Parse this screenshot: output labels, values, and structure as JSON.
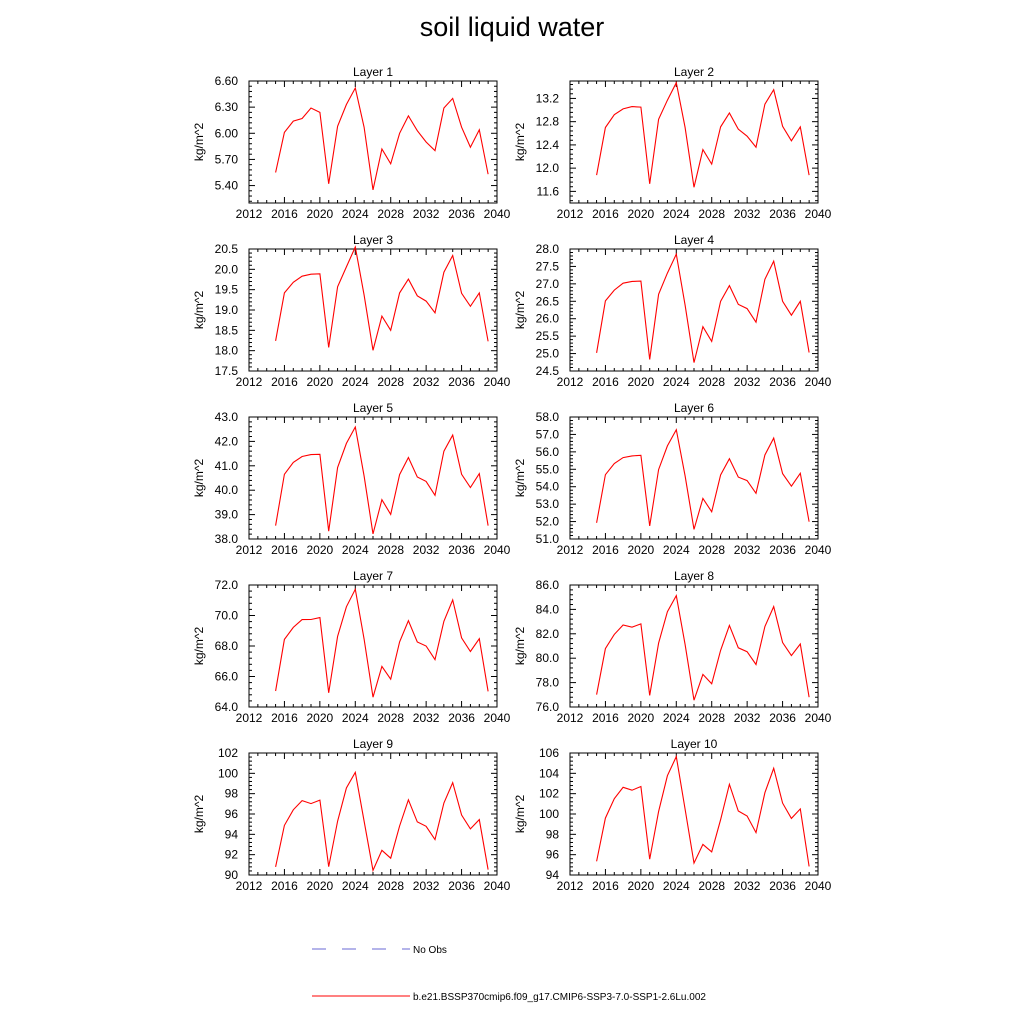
{
  "title": "soil liquid water",
  "legend": {
    "placement": "bottom",
    "entries": [
      {
        "label": "No Obs",
        "color": "#6a6ad6",
        "style": "dashed"
      },
      {
        "label": "b.e21.BSSP370cmip6.f09_g17.CMIP6-SSP3-7.0-SSP1-2.6Lu.002",
        "color": "#ff0000",
        "style": "solid"
      }
    ]
  },
  "chart_data": [
    {
      "type": "line",
      "title": "Layer 1",
      "ylabel": "kg/m^2",
      "xlim": [
        2012,
        2040
      ],
      "xticks": [
        "2012",
        "2016",
        "2020",
        "2024",
        "2028",
        "2032",
        "2036",
        "2040"
      ],
      "ylim": [
        5.2,
        6.6
      ],
      "yticks": [
        "5.40",
        "5.70",
        "6.00",
        "6.30",
        "6.60"
      ],
      "series": [
        {
          "color": "#ff0000",
          "x": [
            2015,
            2016,
            2017,
            2018,
            2019,
            2020,
            2021,
            2022,
            2023,
            2024,
            2025,
            2026,
            2027,
            2028,
            2029,
            2030,
            2031,
            2032,
            2033,
            2034,
            2035,
            2036,
            2037,
            2038,
            2039
          ],
          "y": [
            5.55,
            6.01,
            6.14,
            6.17,
            6.29,
            6.24,
            5.42,
            6.08,
            6.33,
            6.52,
            6.07,
            5.35,
            5.82,
            5.65,
            6.0,
            6.2,
            6.03,
            5.9,
            5.8,
            6.29,
            6.4,
            6.07,
            5.84,
            6.04,
            5.53
          ]
        }
      ]
    },
    {
      "type": "line",
      "title": "Layer 2",
      "ylabel": "kg/m^2",
      "xlim": [
        2012,
        2040
      ],
      "xticks": [
        "2012",
        "2016",
        "2020",
        "2024",
        "2028",
        "2032",
        "2036",
        "2040"
      ],
      "ylim": [
        11.4,
        13.5
      ],
      "yticks": [
        "11.6",
        "12.0",
        "12.4",
        "12.8",
        "13.2"
      ],
      "series": [
        {
          "color": "#ff0000",
          "x": [
            2015,
            2016,
            2017,
            2018,
            2019,
            2020,
            2021,
            2022,
            2023,
            2024,
            2025,
            2026,
            2027,
            2028,
            2029,
            2030,
            2031,
            2032,
            2033,
            2034,
            2035,
            2036,
            2037,
            2038,
            2039
          ],
          "y": [
            11.88,
            12.7,
            12.92,
            13.02,
            13.06,
            13.05,
            11.73,
            12.84,
            13.17,
            13.47,
            12.7,
            11.67,
            12.32,
            12.07,
            12.71,
            12.95,
            12.67,
            12.55,
            12.36,
            13.1,
            13.35,
            12.72,
            12.47,
            12.71,
            11.88
          ]
        }
      ]
    },
    {
      "type": "line",
      "title": "Layer 3",
      "ylabel": "kg/m^2",
      "xlim": [
        2012,
        2040
      ],
      "xticks": [
        "2012",
        "2016",
        "2020",
        "2024",
        "2028",
        "2032",
        "2036",
        "2040"
      ],
      "ylim": [
        17.5,
        20.5
      ],
      "yticks": [
        "17.5",
        "18.0",
        "18.5",
        "19.0",
        "19.5",
        "20.0",
        "20.5"
      ],
      "series": [
        {
          "color": "#ff0000",
          "x": [
            2015,
            2016,
            2017,
            2018,
            2019,
            2020,
            2021,
            2022,
            2023,
            2024,
            2025,
            2026,
            2027,
            2028,
            2029,
            2030,
            2031,
            2032,
            2033,
            2034,
            2035,
            2036,
            2037,
            2038,
            2039
          ],
          "y": [
            18.24,
            19.42,
            19.68,
            19.83,
            19.88,
            19.89,
            18.08,
            19.57,
            20.06,
            20.55,
            19.37,
            18.01,
            18.85,
            18.5,
            19.42,
            19.76,
            19.35,
            19.22,
            18.93,
            19.93,
            20.34,
            19.41,
            19.09,
            19.42,
            18.23
          ]
        }
      ]
    },
    {
      "type": "line",
      "title": "Layer 4",
      "ylabel": "kg/m^2",
      "xlim": [
        2012,
        2040
      ],
      "xticks": [
        "2012",
        "2016",
        "2020",
        "2024",
        "2028",
        "2032",
        "2036",
        "2040"
      ],
      "ylim": [
        24.5,
        28.0
      ],
      "yticks": [
        "24.5",
        "25.0",
        "25.5",
        "26.0",
        "26.5",
        "27.0",
        "27.5",
        "28.0"
      ],
      "series": [
        {
          "color": "#ff0000",
          "x": [
            2015,
            2016,
            2017,
            2018,
            2019,
            2020,
            2021,
            2022,
            2023,
            2024,
            2025,
            2026,
            2027,
            2028,
            2029,
            2030,
            2031,
            2032,
            2033,
            2034,
            2035,
            2036,
            2037,
            2038,
            2039
          ],
          "y": [
            25.02,
            26.51,
            26.82,
            27.02,
            27.07,
            27.08,
            24.83,
            26.7,
            27.31,
            27.85,
            26.39,
            24.74,
            25.77,
            25.35,
            26.5,
            26.95,
            26.41,
            26.29,
            25.9,
            27.13,
            27.65,
            26.5,
            26.1,
            26.5,
            25.03
          ]
        }
      ]
    },
    {
      "type": "line",
      "title": "Layer 5",
      "ylabel": "kg/m^2",
      "xlim": [
        2012,
        2040
      ],
      "xticks": [
        "2012",
        "2016",
        "2020",
        "2024",
        "2028",
        "2032",
        "2036",
        "2040"
      ],
      "ylim": [
        38.0,
        43.0
      ],
      "yticks": [
        "38.0",
        "39.0",
        "40.0",
        "41.0",
        "42.0",
        "43.0"
      ],
      "series": [
        {
          "color": "#ff0000",
          "x": [
            2015,
            2016,
            2017,
            2018,
            2019,
            2020,
            2021,
            2022,
            2023,
            2024,
            2025,
            2026,
            2027,
            2028,
            2029,
            2030,
            2031,
            2032,
            2033,
            2034,
            2035,
            2036,
            2037,
            2038,
            2039
          ],
          "y": [
            38.55,
            40.65,
            41.14,
            41.38,
            41.46,
            41.47,
            38.32,
            40.93,
            41.92,
            42.59,
            40.58,
            38.21,
            39.61,
            39.01,
            40.64,
            41.34,
            40.54,
            40.36,
            39.79,
            41.6,
            42.26,
            40.65,
            40.11,
            40.68,
            38.55
          ]
        }
      ]
    },
    {
      "type": "line",
      "title": "Layer 6",
      "ylabel": "kg/m^2",
      "xlim": [
        2012,
        2040
      ],
      "xticks": [
        "2012",
        "2016",
        "2020",
        "2024",
        "2028",
        "2032",
        "2036",
        "2040"
      ],
      "ylim": [
        51.0,
        58.0
      ],
      "yticks": [
        "51.0",
        "52.0",
        "53.0",
        "54.0",
        "55.0",
        "56.0",
        "57.0",
        "58.0"
      ],
      "series": [
        {
          "color": "#ff0000",
          "x": [
            2015,
            2016,
            2017,
            2018,
            2019,
            2020,
            2021,
            2022,
            2023,
            2024,
            2025,
            2026,
            2027,
            2028,
            2029,
            2030,
            2031,
            2032,
            2033,
            2034,
            2035,
            2036,
            2037,
            2038,
            2039
          ],
          "y": [
            51.93,
            54.69,
            55.33,
            55.67,
            55.77,
            55.8,
            51.75,
            54.98,
            56.34,
            57.27,
            54.62,
            51.55,
            53.33,
            52.56,
            54.67,
            55.61,
            54.55,
            54.35,
            53.62,
            55.82,
            56.79,
            54.75,
            54.03,
            54.77,
            51.99
          ]
        }
      ]
    },
    {
      "type": "line",
      "title": "Layer 7",
      "ylabel": "kg/m^2",
      "xlim": [
        2012,
        2040
      ],
      "xticks": [
        "2012",
        "2016",
        "2020",
        "2024",
        "2028",
        "2032",
        "2036",
        "2040"
      ],
      "ylim": [
        64.0,
        72.0
      ],
      "yticks": [
        "64.0",
        "66.0",
        "68.0",
        "70.0",
        "72.0"
      ],
      "series": [
        {
          "color": "#ff0000",
          "x": [
            2015,
            2016,
            2017,
            2018,
            2019,
            2020,
            2021,
            2022,
            2023,
            2024,
            2025,
            2026,
            2027,
            2028,
            2029,
            2030,
            2031,
            2032,
            2033,
            2034,
            2035,
            2036,
            2037,
            2038,
            2039
          ],
          "y": [
            65.05,
            68.43,
            69.22,
            69.73,
            69.74,
            69.86,
            64.93,
            68.63,
            70.57,
            71.72,
            68.45,
            64.64,
            66.66,
            65.82,
            68.27,
            69.66,
            68.26,
            68.0,
            67.11,
            69.62,
            71.02,
            68.53,
            67.64,
            68.48,
            65.02
          ]
        }
      ]
    },
    {
      "type": "line",
      "title": "Layer 8",
      "ylabel": "kg/m^2",
      "xlim": [
        2012,
        2040
      ],
      "xticks": [
        "2012",
        "2016",
        "2020",
        "2024",
        "2028",
        "2032",
        "2036",
        "2040"
      ],
      "ylim": [
        76.0,
        86.0
      ],
      "yticks": [
        "76.0",
        "78.0",
        "80.0",
        "82.0",
        "84.0",
        "86.0"
      ],
      "series": [
        {
          "color": "#ff0000",
          "x": [
            2015,
            2016,
            2017,
            2018,
            2019,
            2020,
            2021,
            2022,
            2023,
            2024,
            2025,
            2026,
            2027,
            2028,
            2029,
            2030,
            2031,
            2032,
            2033,
            2034,
            2035,
            2036,
            2037,
            2038,
            2039
          ],
          "y": [
            77.02,
            80.79,
            81.95,
            82.72,
            82.54,
            82.81,
            76.95,
            81.24,
            83.81,
            85.13,
            81.12,
            76.56,
            78.67,
            77.9,
            80.64,
            82.69,
            80.85,
            80.53,
            79.48,
            82.6,
            84.23,
            81.29,
            80.21,
            81.16,
            76.8
          ]
        }
      ]
    },
    {
      "type": "line",
      "title": "Layer 9",
      "ylabel": "kg/m^2",
      "xlim": [
        2012,
        2040
      ],
      "xticks": [
        "2012",
        "2016",
        "2020",
        "2024",
        "2028",
        "2032",
        "2036",
        "2040"
      ],
      "ylim": [
        90,
        102
      ],
      "yticks": [
        "90",
        "92",
        "94",
        "96",
        "98",
        "100",
        "102"
      ],
      "series": [
        {
          "color": "#ff0000",
          "x": [
            2015,
            2016,
            2017,
            2018,
            2019,
            2020,
            2021,
            2022,
            2023,
            2024,
            2025,
            2026,
            2027,
            2028,
            2029,
            2030,
            2031,
            2032,
            2033,
            2034,
            2035,
            2036,
            2037,
            2038,
            2039
          ],
          "y": [
            90.8,
            94.88,
            96.41,
            97.32,
            97.02,
            97.37,
            90.82,
            95.29,
            98.56,
            100.1,
            95.3,
            90.45,
            92.43,
            91.65,
            94.82,
            97.4,
            95.22,
            94.79,
            93.49,
            97.08,
            99.09,
            95.9,
            94.53,
            95.45,
            90.53
          ]
        }
      ]
    },
    {
      "type": "line",
      "title": "Layer 10",
      "ylabel": "kg/m^2",
      "xlim": [
        2012,
        2040
      ],
      "xticks": [
        "2012",
        "2016",
        "2020",
        "2024",
        "2028",
        "2032",
        "2036",
        "2040"
      ],
      "ylim": [
        94,
        106
      ],
      "yticks": [
        "94",
        "96",
        "98",
        "100",
        "102",
        "104",
        "106"
      ],
      "series": [
        {
          "color": "#ff0000",
          "x": [
            2015,
            2016,
            2017,
            2018,
            2019,
            2020,
            2021,
            2022,
            2023,
            2024,
            2025,
            2026,
            2027,
            2028,
            2029,
            2030,
            2031,
            2032,
            2033,
            2034,
            2035,
            2036,
            2037,
            2038,
            2039
          ],
          "y": [
            95.35,
            99.6,
            101.51,
            102.63,
            102.34,
            102.7,
            95.55,
            100.25,
            103.77,
            105.65,
            100.47,
            95.17,
            97.01,
            96.27,
            99.44,
            102.92,
            100.3,
            99.8,
            98.17,
            102.1,
            104.5,
            101.07,
            99.57,
            100.5,
            94.85
          ]
        }
      ]
    }
  ]
}
